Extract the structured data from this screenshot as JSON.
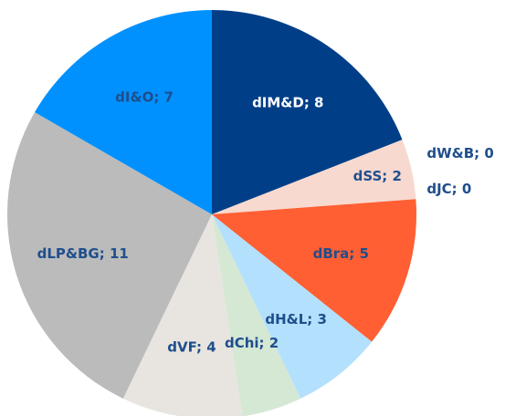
{
  "chart_data": {
    "type": "pie",
    "values": [
      8,
      2,
      0,
      0,
      5,
      3,
      2,
      4,
      11,
      7
    ],
    "value_labels": [
      "dIM&D; 8",
      "dSS; 2",
      "dW&B; 0",
      "dJC; 0",
      "dBra; 5",
      "dH&L; 3",
      "dChi; 2",
      "dVF; 4",
      "dLP&BG; 11",
      "dI&O; 7"
    ],
    "colors": [
      "#003f87",
      "#f8d9d0",
      "#5b9bd5",
      "#a5a5a5",
      "#ff5f33",
      "#b3e0fc",
      "#d5e8d4",
      "#e8e5e0",
      "#bbbbbb",
      "#0091ff"
    ]
  }
}
